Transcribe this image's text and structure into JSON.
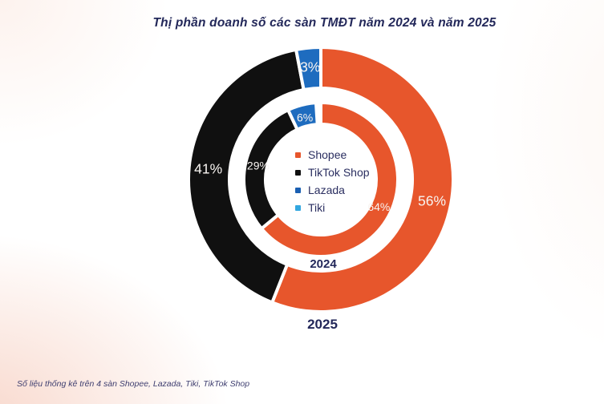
{
  "page": {
    "title": "Thị phần doanh số các sàn TMĐT năm 2024 và năm 2025",
    "footer_note": "Số liệu thống kê trên 4 sàn Shopee, Lazada, Tiki, TikTok Shop"
  },
  "colors": {
    "orange": "#E7562C",
    "black": "#101010",
    "blue": "#1E6CBF",
    "cyan": "#33A7E0",
    "navy_text": "#23285A",
    "segment_label": "#F8F4F1",
    "background_tint": "#F8D7CB"
  },
  "chart_data": {
    "type": "pie",
    "variant": "nested-donut-two-rings",
    "title": "Thị phần doanh số các sàn TMĐT năm 2024 và năm 2025",
    "legend_position": "center",
    "legend": [
      {
        "label": "Shopee",
        "color": "#E7562C"
      },
      {
        "label": "TikTok Shop",
        "color": "#101010"
      },
      {
        "label": "Lazada",
        "color": "#1A5FB2"
      },
      {
        "label": "Tiki",
        "color": "#33A7E0"
      }
    ],
    "rings": [
      {
        "name": "2024",
        "position": "inner",
        "segments": [
          {
            "label": "Shopee",
            "value": 64,
            "value_label": "64%",
            "color": "#E7562C"
          },
          {
            "label": "TikTok Shop",
            "value": 29,
            "value_label": "29%",
            "color": "#101010"
          },
          {
            "label": "Lazada",
            "value": 6,
            "value_label": "6%",
            "color": "#1E6CBF"
          },
          {
            "label": "Tiki",
            "value": null,
            "value_label": "",
            "color": "#33A7E0"
          }
        ]
      },
      {
        "name": "2025",
        "position": "outer",
        "segments": [
          {
            "label": "Shopee",
            "value": 56,
            "value_label": "56%",
            "color": "#E7562C"
          },
          {
            "label": "TikTok Shop",
            "value": 41,
            "value_label": "41%",
            "color": "#101010"
          },
          {
            "label": "Lazada",
            "value": 3,
            "value_label": "3%",
            "color": "#1E6CBF"
          },
          {
            "label": "Tiki",
            "value": null,
            "value_label": "",
            "color": "#33A7E0"
          }
        ]
      }
    ]
  }
}
